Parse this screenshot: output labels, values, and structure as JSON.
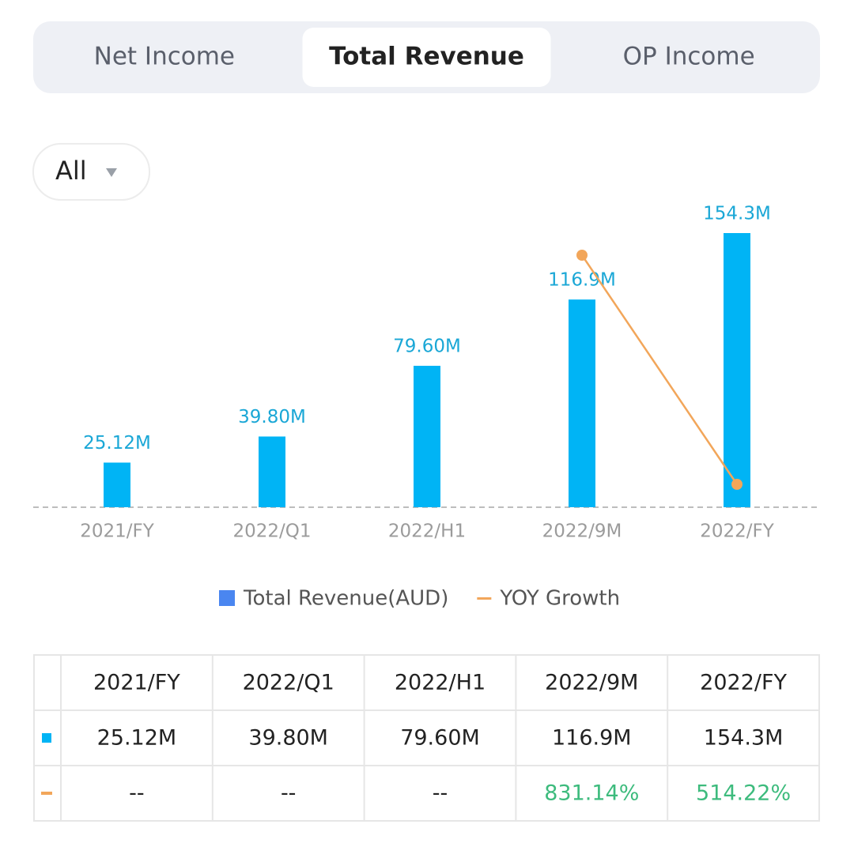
{
  "tabs": {
    "items": [
      "Net Income",
      "Total Revenue",
      "OP Income"
    ],
    "selected": 1
  },
  "filter": "All",
  "chart_data": {
    "type": "bar",
    "categories": [
      "2021/FY",
      "2022/Q1",
      "2022/H1",
      "2022/9M",
      "2022/FY"
    ],
    "series": [
      {
        "name": "Total Revenue(AUD)",
        "type": "bar",
        "color": "#00b4f5",
        "legend_color": "#4a86f0",
        "values": [
          25.12,
          39.8,
          79.6,
          116.9,
          154.3
        ],
        "value_labels": [
          "25.12M",
          "39.80M",
          "79.60M",
          "116.9M",
          "154.3M"
        ]
      },
      {
        "name": "YOY Growth",
        "type": "line",
        "color": "#f2a65a",
        "text_color": "#3dbb7d",
        "values": [
          null,
          null,
          null,
          831.14,
          514.22
        ],
        "value_labels": [
          "--",
          "--",
          "--",
          "831.14%",
          "514.22%"
        ]
      }
    ]
  }
}
